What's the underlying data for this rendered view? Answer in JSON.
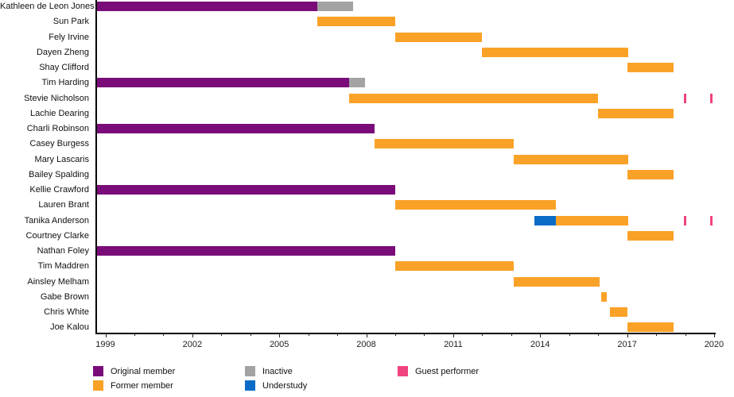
{
  "chart_data": {
    "type": "timeline",
    "description": "Band member timeline gantt chart",
    "x_axis": {
      "major_ticks": [
        1999,
        2002,
        2005,
        2008,
        2011,
        2014,
        2017,
        2020
      ],
      "minor_tick_step": 1,
      "range_start": 1998.7,
      "range_end": 2020.3
    },
    "legend": [
      {
        "status": "original",
        "label": "Original member"
      },
      {
        "status": "former",
        "label": "Former member"
      },
      {
        "status": "inactive",
        "label": "Inactive"
      },
      {
        "status": "understudy",
        "label": "Understudy"
      },
      {
        "status": "guest",
        "label": "Guest performer"
      }
    ],
    "colors": {
      "original": "#7a0c7a",
      "former": "#f9a227",
      "inactive": "#a3a3a3",
      "understudy": "#0b6cc8",
      "guest": "#f0437f"
    },
    "members": [
      {
        "name": "Kathleen de Leon Jones",
        "segments": [
          {
            "status": "original",
            "start": 1998.7,
            "end": 2006.3
          },
          {
            "status": "inactive",
            "start": 2006.3,
            "end": 2007.55
          }
        ],
        "events": []
      },
      {
        "name": "Sun Park",
        "segments": [
          {
            "status": "former",
            "start": 2006.3,
            "end": 2009.0
          }
        ],
        "events": []
      },
      {
        "name": "Fely Irvine",
        "segments": [
          {
            "status": "former",
            "start": 2009.0,
            "end": 2012.0
          }
        ],
        "events": []
      },
      {
        "name": "Dayen Zheng",
        "segments": [
          {
            "status": "former",
            "start": 2012.0,
            "end": 2017.05
          }
        ],
        "events": []
      },
      {
        "name": "Shay Clifford",
        "segments": [
          {
            "status": "former",
            "start": 2017.0,
            "end": 2018.6
          }
        ],
        "events": []
      },
      {
        "name": "Tim Harding",
        "segments": [
          {
            "status": "original",
            "start": 1998.7,
            "end": 2007.4
          },
          {
            "status": "inactive",
            "start": 2007.4,
            "end": 2007.95
          }
        ],
        "events": []
      },
      {
        "name": "Stevie Nicholson",
        "segments": [
          {
            "status": "former",
            "start": 2007.4,
            "end": 2016.0
          }
        ],
        "events": [
          {
            "status": "guest",
            "year": 2019.0
          },
          {
            "status": "guest",
            "year": 2019.9
          }
        ]
      },
      {
        "name": "Lachie Dearing",
        "segments": [
          {
            "status": "former",
            "start": 2016.0,
            "end": 2018.6
          }
        ],
        "events": []
      },
      {
        "name": "Charli Robinson",
        "segments": [
          {
            "status": "original",
            "start": 1998.7,
            "end": 2008.3
          }
        ],
        "events": []
      },
      {
        "name": "Casey Burgess",
        "segments": [
          {
            "status": "former",
            "start": 2008.3,
            "end": 2013.1
          }
        ],
        "events": []
      },
      {
        "name": "Mary Lascaris",
        "segments": [
          {
            "status": "former",
            "start": 2013.1,
            "end": 2017.05
          }
        ],
        "events": []
      },
      {
        "name": "Bailey Spalding",
        "segments": [
          {
            "status": "former",
            "start": 2017.0,
            "end": 2018.6
          }
        ],
        "events": []
      },
      {
        "name": "Kellie Crawford",
        "segments": [
          {
            "status": "original",
            "start": 1998.7,
            "end": 2009.0
          }
        ],
        "events": []
      },
      {
        "name": "Lauren Brant",
        "segments": [
          {
            "status": "former",
            "start": 2009.0,
            "end": 2014.55
          }
        ],
        "events": []
      },
      {
        "name": "Tanika Anderson",
        "segments": [
          {
            "status": "understudy",
            "start": 2013.8,
            "end": 2014.55
          },
          {
            "status": "former",
            "start": 2014.55,
            "end": 2017.05
          }
        ],
        "events": [
          {
            "status": "guest",
            "year": 2019.0
          },
          {
            "status": "guest",
            "year": 2019.9
          }
        ]
      },
      {
        "name": "Courtney Clarke",
        "segments": [
          {
            "status": "former",
            "start": 2017.0,
            "end": 2018.6
          }
        ],
        "events": []
      },
      {
        "name": "Nathan Foley",
        "segments": [
          {
            "status": "original",
            "start": 1998.7,
            "end": 2009.0
          }
        ],
        "events": []
      },
      {
        "name": "Tim Maddren",
        "segments": [
          {
            "status": "former",
            "start": 2009.0,
            "end": 2013.1
          }
        ],
        "events": []
      },
      {
        "name": "Ainsley Melham",
        "segments": [
          {
            "status": "former",
            "start": 2013.1,
            "end": 2016.05
          }
        ],
        "events": []
      },
      {
        "name": "Gabe Brown",
        "segments": [
          {
            "status": "former",
            "start": 2016.1,
            "end": 2016.3
          }
        ],
        "events": []
      },
      {
        "name": "Chris White",
        "segments": [
          {
            "status": "former",
            "start": 2016.4,
            "end": 2017.0
          }
        ],
        "events": []
      },
      {
        "name": "Joe Kalou",
        "segments": [
          {
            "status": "former",
            "start": 2017.0,
            "end": 2018.6
          }
        ],
        "events": []
      }
    ]
  }
}
